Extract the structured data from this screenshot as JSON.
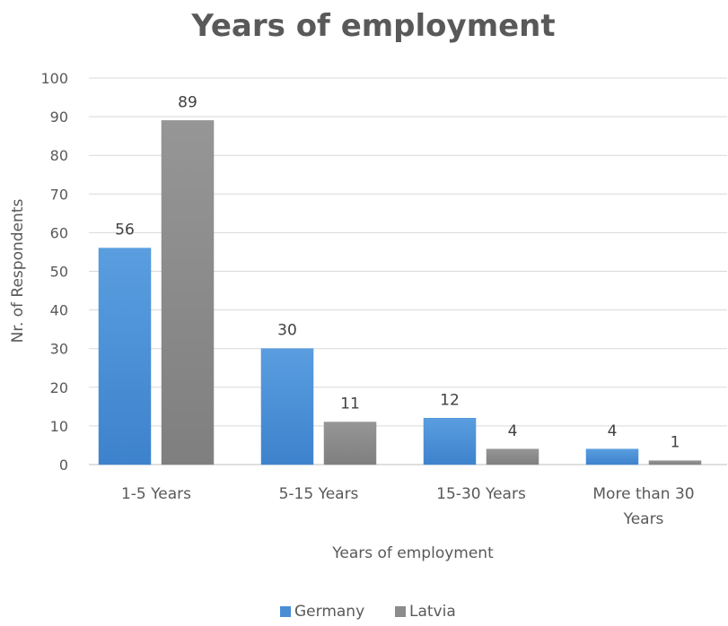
{
  "chart_data": {
    "type": "bar",
    "title": "Years of employment",
    "xlabel": "Years of employment",
    "ylabel": "Nr. of Respondents",
    "categories": [
      [
        "1-5 Years"
      ],
      [
        "5-15 Years"
      ],
      [
        "15-30 Years"
      ],
      [
        "More than 30",
        "Years"
      ]
    ],
    "series": [
      {
        "name": "Germany",
        "values": [
          56,
          30,
          12,
          4
        ],
        "color": "#4a8fd6"
      },
      {
        "name": "Latvia",
        "values": [
          89,
          11,
          4,
          1
        ],
        "color": "#8c8c8c"
      }
    ],
    "ylim": [
      0,
      100
    ],
    "yticks": [
      "0",
      "10",
      "20",
      "30",
      "40",
      "50",
      "60",
      "70",
      "80",
      "90",
      "100"
    ],
    "grid": true,
    "legend_position": "bottom-center"
  }
}
